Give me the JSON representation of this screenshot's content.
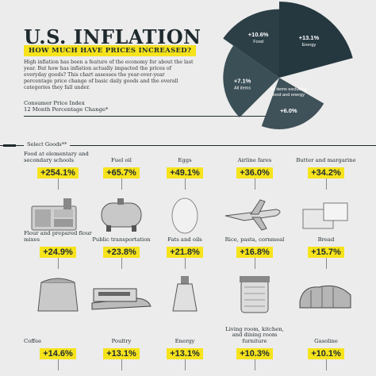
{
  "header": {
    "title": "U.S. INFLATION",
    "subtitle": "HOW MUCH HAVE PRICES INCREASED?",
    "intro": "High inflation has been a feature of the economy for about the last year. But how has inflation actually impacted the prices of everyday goods? This chart assesses the year-over-year percentage price change of basic daily goods and the overall categories they fall under.",
    "cpi_line1": "Consumer Price Index",
    "cpi_line2": "12 Month Percentage Change*"
  },
  "chart_data": [
    {
      "type": "pie",
      "title": "",
      "categories": [
        "All items",
        "Food",
        "Energy",
        "All items excluding food and energy"
      ],
      "values": [
        7.1,
        10.6,
        13.1,
        6.0
      ],
      "labels": [
        "+7.1%",
        "+10.6%",
        "+13.1%",
        "+6.0%"
      ],
      "colors": [
        "#3b4f57",
        "#2c3f47",
        "#253840",
        "#3f5159"
      ]
    },
    {
      "type": "bar",
      "title": "",
      "categories": [
        "Food at elementary and secondary schools",
        "Fuel oil",
        "Eggs",
        "Airline fares",
        "Butter and margarine",
        "Flour and prepared flour mixes",
        "Public transportation",
        "Fats and oils",
        "Rice, pasta, cornmeal",
        "Bread",
        "Coffee",
        "Poultry",
        "Energy",
        "Living room, kitchen, and dining room furniture",
        "Gasoline"
      ],
      "values": [
        254.1,
        65.7,
        49.1,
        36.0,
        34.2,
        24.9,
        23.8,
        21.8,
        16.8,
        15.7,
        14.6,
        13.1,
        13.1,
        10.3,
        10.1
      ],
      "labels": [
        "+254.1%",
        "+65.7%",
        "+49.1%",
        "+36.0%",
        "+34.2%",
        "+24.9%",
        "+23.8%",
        "+21.8%",
        "+16.8%",
        "+15.7%",
        "+14.6%",
        "+13.1%",
        "+13.1%",
        "+10.3%",
        "+10.1%"
      ]
    }
  ],
  "select_goods_label": "Select Goods**",
  "goods": [
    {
      "name": "Food at elementary and secondary schools",
      "value": "+254.1%",
      "icon": "school-lunch-tray-icon"
    },
    {
      "name": "Fuel oil",
      "value": "+65.7%",
      "icon": "fuel-tank-icon"
    },
    {
      "name": "Eggs",
      "value": "+49.1%",
      "icon": "egg-icon"
    },
    {
      "name": "Airline fares",
      "value": "+36.0%",
      "icon": "airplane-icon"
    },
    {
      "name": "Butter and margarine",
      "value": "+34.2%",
      "icon": "butter-icon"
    },
    {
      "name": "Flour and prepared flour mixes",
      "value": "+24.9%",
      "icon": "flour-sack-icon"
    },
    {
      "name": "Public transportation",
      "value": "+23.8%",
      "icon": "train-icon"
    },
    {
      "name": "Fats and oils",
      "value": "+21.8%",
      "icon": "oil-bottle-icon"
    },
    {
      "name": "Rice, pasta, cornmeal",
      "value": "+16.8%",
      "icon": "pasta-jar-icon"
    },
    {
      "name": "Bread",
      "value": "+15.7%",
      "icon": "bread-icon"
    },
    {
      "name": "Coffee",
      "value": "+14.6%",
      "icon": "coffee-icon"
    },
    {
      "name": "Poultry",
      "value": "+13.1%",
      "icon": "poultry-icon"
    },
    {
      "name": "Energy",
      "value": "+13.1%",
      "icon": "energy-icon"
    },
    {
      "name": "Living room, kitchen, and dining room furniture",
      "value": "+10.3%",
      "icon": "furniture-icon"
    },
    {
      "name": "Gasoline",
      "value": "+10.1%",
      "icon": "gasoline-icon"
    }
  ]
}
